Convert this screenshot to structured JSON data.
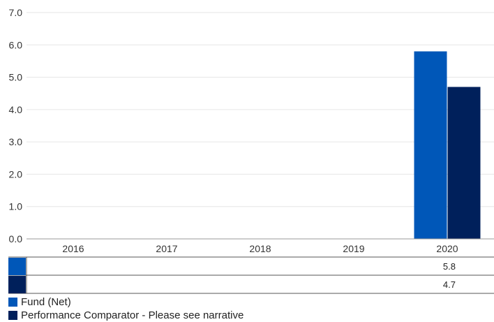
{
  "chart_data": {
    "type": "bar",
    "categories": [
      "2016",
      "2017",
      "2018",
      "2019",
      "2020"
    ],
    "series": [
      {
        "name": "Fund (Net)",
        "color": "#0057b8",
        "values": [
          null,
          null,
          null,
          null,
          5.8
        ]
      },
      {
        "name": "Performance Comparator - Please see narrative",
        "color": "#00205b",
        "values": [
          null,
          null,
          null,
          null,
          4.7
        ]
      }
    ],
    "y_ticks": [
      "0.0",
      "1.0",
      "2.0",
      "3.0",
      "4.0",
      "5.0",
      "6.0",
      "7.0"
    ],
    "ylim": [
      0,
      7
    ],
    "grid": true,
    "legend_position": "bottom-left",
    "data_table": true
  }
}
